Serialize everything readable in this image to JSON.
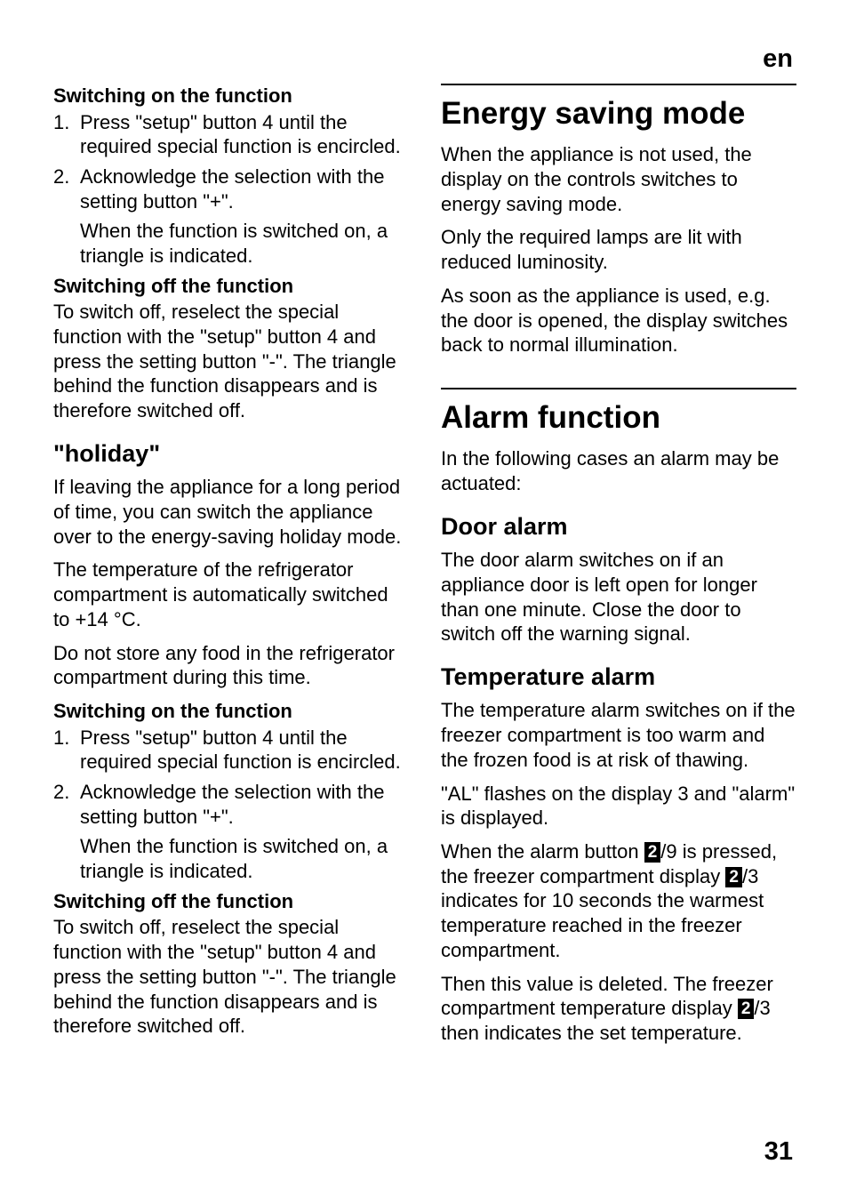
{
  "page": {
    "language_tag": "en",
    "number": "31"
  },
  "left": {
    "s1": {
      "heading": "Switching on the function",
      "steps": [
        {
          "num": "1.",
          "text": "Press \"setup\" button 4 until the required special function is encircled."
        },
        {
          "num": "2.",
          "text": "Acknowledge the selection with the setting button \"+\".",
          "cont": "When the function is switched on, a triangle is indicated."
        }
      ]
    },
    "s2": {
      "heading": "Switching off the function",
      "body": "To switch off, reselect the special function with the \"setup\" button 4 and press the setting button \"-\". The triangle behind the function disappears and is therefore switched off."
    },
    "holiday": {
      "heading": "\"holiday\"",
      "p1": "If leaving the appliance for a long period of time, you can switch the appliance over to the energy-saving holiday mode.",
      "p2": "The temperature of the refrigerator compartment is automatically switched to +14 °C.",
      "p3": "Do not store any food in the refrigerator compartment during this time."
    },
    "s3": {
      "heading": "Switching on the function",
      "steps": [
        {
          "num": "1.",
          "text": "Press \"setup\" button 4 until the required special function is encircled."
        },
        {
          "num": "2.",
          "text": "Acknowledge the selection with the setting button \"+\".",
          "cont": "When the function is switched on, a triangle is indicated."
        }
      ]
    },
    "s4": {
      "heading": "Switching off the function",
      "body": "To switch off, reselect the special function with the \"setup\" button 4 and press the setting button \"-\". The triangle behind the function disappears and is therefore switched off."
    }
  },
  "right": {
    "energy": {
      "heading": "Energy saving mode",
      "p1": "When the appliance is not used, the display on the controls switches to energy saving mode.",
      "p2": "Only the required lamps are lit with reduced luminosity.",
      "p3": "As soon as the appliance is used, e.g. the door is opened, the display switches back to normal illumination."
    },
    "alarm": {
      "heading": "Alarm function",
      "intro": "In the following cases an alarm may be actuated:"
    },
    "door": {
      "heading": "Door alarm",
      "body": "The door alarm switches on if an appliance door is left open for longer than one minute. Close the door to switch off the warning signal."
    },
    "temp": {
      "heading": "Temperature alarm",
      "p1": "The temperature alarm switches on if the freezer compartment is too warm and the frozen food is at risk of thawing.",
      "p2": "\"AL\" flashes on the display 3 and \"alarm\" is displayed.",
      "p3a": "When the alarm button ",
      "p3_badge1": "2",
      "p3b": "/9 is pressed, the freezer compartment display ",
      "p3_badge2": "2",
      "p3c": "/3 indicates for 10 seconds the warmest temperature reached in the freezer compartment.",
      "p4a": "Then this value is deleted. The freezer compartment temperature display ",
      "p4_badge": "2",
      "p4b": "/3 then indicates the set temperature."
    }
  }
}
